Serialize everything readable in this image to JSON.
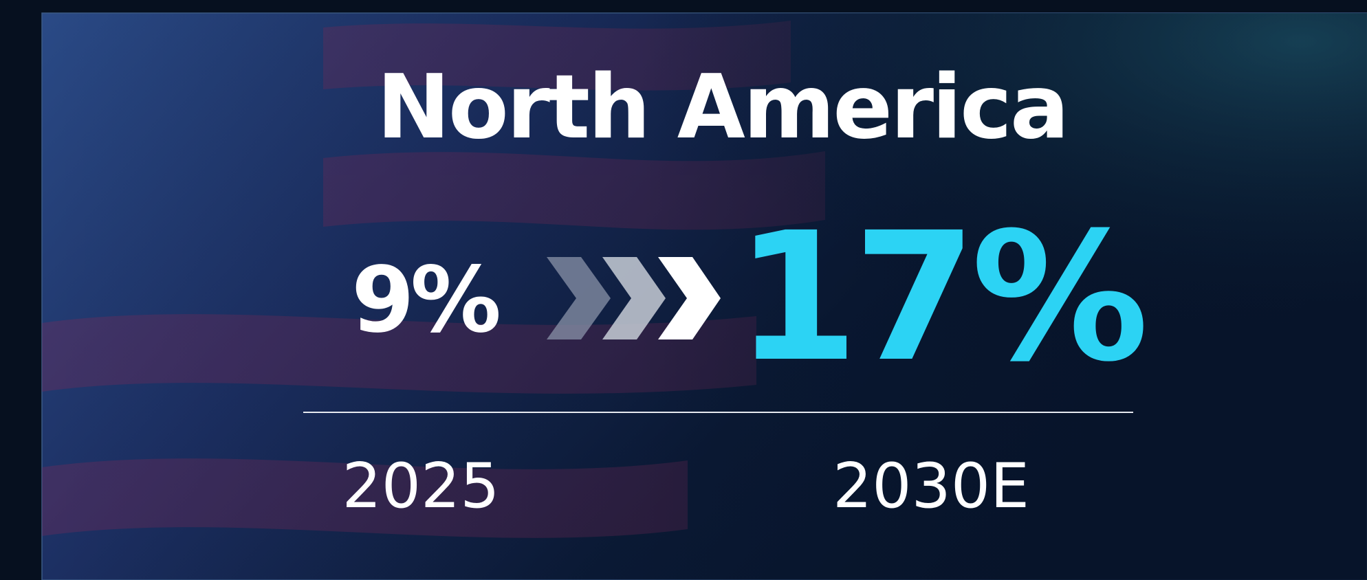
{
  "title": "North America",
  "from": {
    "value": "9%",
    "year": "2025"
  },
  "to": {
    "value": "17%",
    "year": "2030E"
  }
}
